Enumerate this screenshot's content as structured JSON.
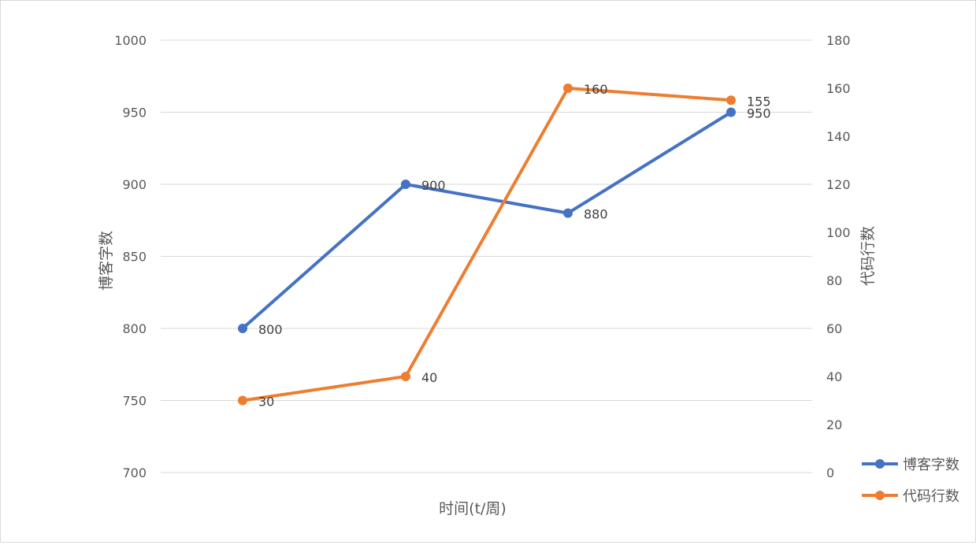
{
  "chart_data": {
    "type": "line",
    "categories": [
      "",
      "",
      "",
      ""
    ],
    "xlabel": "时间(t/周)",
    "ylabel_left": "博客字数",
    "ylabel_right": "代码行数",
    "ylim_left": [
      700,
      1000
    ],
    "yticks_left": [
      700,
      750,
      800,
      850,
      900,
      950,
      1000
    ],
    "ylim_right": [
      0,
      180
    ],
    "yticks_right": [
      0,
      20,
      40,
      60,
      80,
      100,
      120,
      140,
      160,
      180
    ],
    "grid": true,
    "legend_position": "right",
    "series": [
      {
        "name": "博客字数",
        "axis": "left",
        "color": "#4472C4",
        "values": [
          800,
          900,
          880,
          950
        ]
      },
      {
        "name": "代码行数",
        "axis": "right",
        "color": "#ED7D31",
        "values": [
          30,
          40,
          160,
          155
        ]
      }
    ]
  }
}
